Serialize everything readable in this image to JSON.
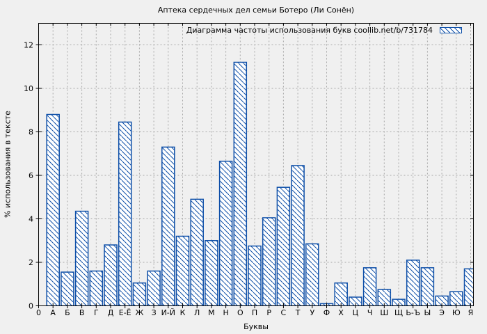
{
  "chart_data": {
    "type": "bar",
    "title": "Аптека сердечных дел семьи Ботеро (Ли Сонён)",
    "legend_label": "Диаграмма частоты использования букв coollib.net/b/731784",
    "legend_position": "top-right-inside",
    "xlabel": "Буквы",
    "ylabel": "% использования в тексте",
    "x_origin_label": "0",
    "categories": [
      "А",
      "Б",
      "В",
      "Г",
      "Д",
      "Е-Ё",
      "Ж",
      "З",
      "И-Й",
      "К",
      "Л",
      "М",
      "Н",
      "О",
      "П",
      "Р",
      "С",
      "Т",
      "У",
      "Ф",
      "Х",
      "Ц",
      "Ч",
      "Ш",
      "Щ",
      "Ь-Ъ",
      "Ы",
      "Э",
      "Ю",
      "Я"
    ],
    "values": [
      8.8,
      1.55,
      4.35,
      1.6,
      2.8,
      8.45,
      1.05,
      1.6,
      7.3,
      3.2,
      4.9,
      3.0,
      6.65,
      11.2,
      2.75,
      4.05,
      5.45,
      6.45,
      2.85,
      0.1,
      1.05,
      0.4,
      1.75,
      0.75,
      0.3,
      2.1,
      1.75,
      0.45,
      0.65,
      1.7
    ],
    "y_ticks": [
      0,
      2,
      4,
      6,
      8,
      10,
      12
    ],
    "ylim": [
      0,
      13
    ],
    "grid": true,
    "colors": {
      "bar_line": "#0e4fa8",
      "bar_fill": "#ffffff",
      "hatch": "backslash-diagonal",
      "grid_line": "#a6a6a6",
      "axis_line": "#000000",
      "background": "#f0f0f0"
    }
  }
}
